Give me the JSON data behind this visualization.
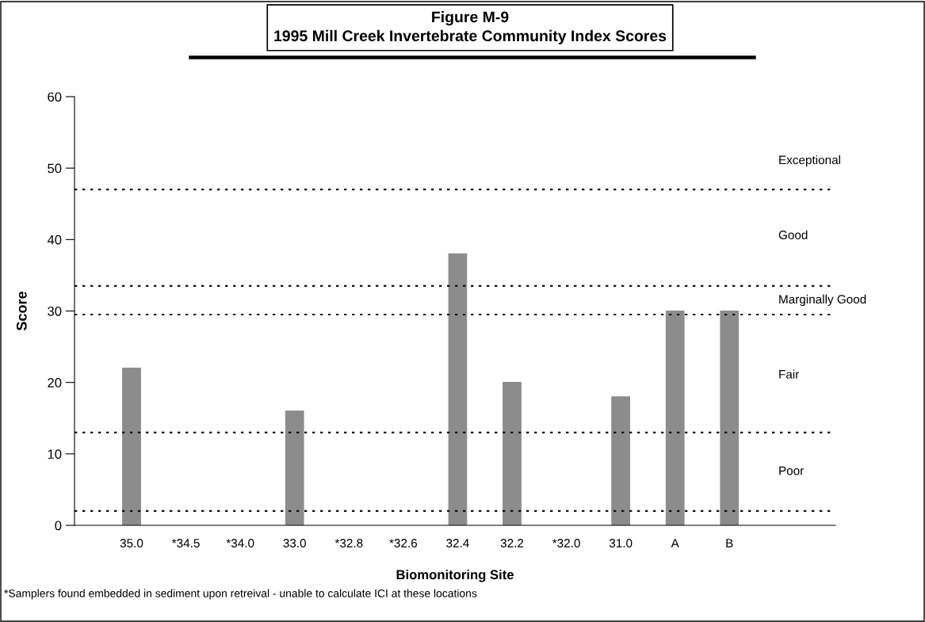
{
  "chart_data": {
    "type": "bar",
    "title": "Figure M-9\n1995 Mill Creek Invertebrate Community Index Scores",
    "xlabel": "Biomonitoring Site",
    "ylabel": "Score",
    "categories": [
      "35.0",
      "*34.5",
      "*34.0",
      "33.0",
      "*32.8",
      "*32.6",
      "32.4",
      "32.2",
      "*32.0",
      "31.0",
      "A",
      "B"
    ],
    "values": [
      22,
      null,
      null,
      16,
      null,
      null,
      38,
      20,
      null,
      18,
      30,
      30
    ],
    "color": "#8c8c8c",
    "ylim": [
      0,
      60
    ],
    "yticks": [
      0,
      10,
      20,
      30,
      40,
      50,
      60
    ],
    "grid": false,
    "ref_lines": [
      {
        "axis": "y",
        "value": 47,
        "line_style": "dotted"
      },
      {
        "axis": "y",
        "value": 33.5,
        "line_style": "dotted"
      },
      {
        "axis": "y",
        "value": 29.5,
        "line_style": "dotted"
      },
      {
        "axis": "y",
        "value": 13,
        "line_style": "dotted"
      },
      {
        "axis": "y",
        "value": 2,
        "line_style": "dotted"
      }
    ],
    "annotations": [
      "Exceptional",
      "Good",
      "Marginally Good",
      "Fair",
      "Poor",
      "*Samplers found embedded in sediment upon retreival - unable to calculate ICI at these locations"
    ]
  }
}
